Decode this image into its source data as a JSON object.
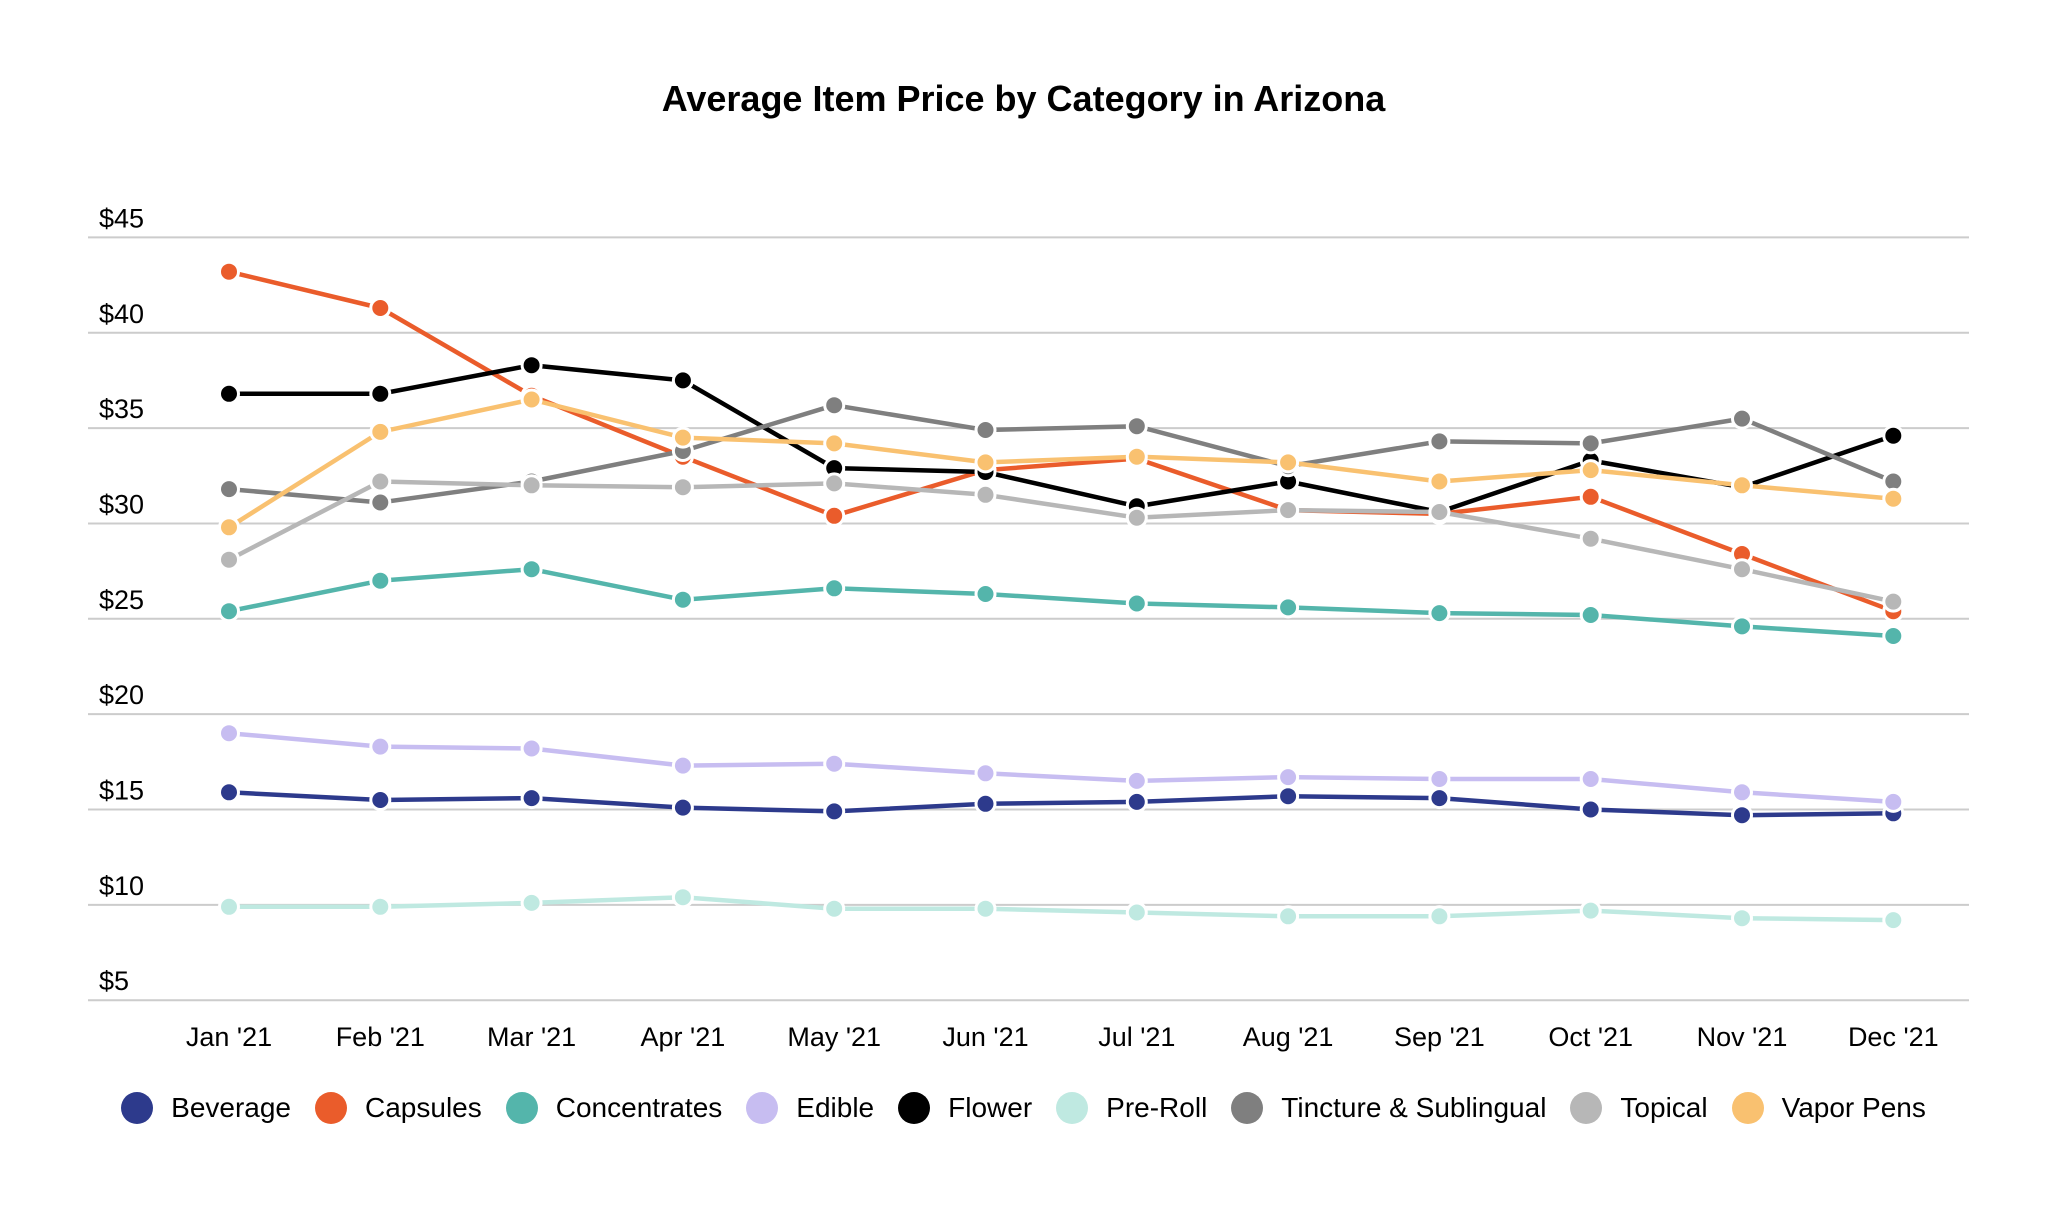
{
  "title": "Average Item Price by Category in Arizona",
  "chart_data": {
    "type": "line",
    "title": "Average Item Price by Category in Arizona",
    "x_categories": [
      "Jan '21",
      "Feb '21",
      "Mar '21",
      "Apr '21",
      "May '21",
      "Jun '21",
      "Jul '21",
      "Aug '21",
      "Sep '21",
      "Oct '21",
      "Nov '21",
      "Dec '21"
    ],
    "y_ticks": [
      45,
      40,
      35,
      30,
      25,
      20,
      15,
      10,
      5
    ],
    "y_tick_prefix": "$",
    "ylim": [
      5,
      45
    ],
    "grid": true,
    "gridline_color": "#cccccc",
    "legend_position": "bottom",
    "series": [
      {
        "name": "Beverage",
        "color": "#2d3a8c",
        "values": [
          15.9,
          15.5,
          15.6,
          15.1,
          14.9,
          15.3,
          15.4,
          15.7,
          15.6,
          15.0,
          14.7,
          14.8
        ]
      },
      {
        "name": "Capsules",
        "color": "#ea5c2b",
        "values": [
          43.2,
          41.3,
          36.7,
          33.5,
          30.4,
          32.8,
          33.4,
          30.7,
          30.5,
          31.4,
          28.4,
          25.4
        ]
      },
      {
        "name": "Concentrates",
        "color": "#54b5ab",
        "values": [
          25.4,
          27.0,
          27.6,
          26.0,
          26.6,
          26.3,
          25.8,
          25.6,
          25.3,
          25.2,
          24.6,
          24.1
        ]
      },
      {
        "name": "Edible",
        "color": "#c7bdf1",
        "values": [
          19.0,
          18.3,
          18.2,
          17.3,
          17.4,
          16.9,
          16.5,
          16.7,
          16.6,
          16.6,
          15.9,
          15.4
        ]
      },
      {
        "name": "Flower",
        "color": "#000000",
        "values": [
          36.8,
          36.8,
          38.3,
          37.5,
          32.9,
          32.7,
          30.9,
          32.2,
          30.6,
          33.3,
          31.9,
          34.6
        ]
      },
      {
        "name": "Pre-Roll",
        "color": "#bfe9e1",
        "values": [
          9.9,
          9.9,
          10.1,
          10.4,
          9.8,
          9.8,
          9.6,
          9.4,
          9.4,
          9.7,
          9.3,
          9.2
        ]
      },
      {
        "name": "Tincture & Sublingual",
        "color": "#7f7f7f",
        "values": [
          31.8,
          31.1,
          32.2,
          33.8,
          36.2,
          34.9,
          35.1,
          33.0,
          34.3,
          34.2,
          35.5,
          32.2
        ]
      },
      {
        "name": "Topical",
        "color": "#b7b7b7",
        "values": [
          28.1,
          32.2,
          32.0,
          31.9,
          32.1,
          31.5,
          30.3,
          30.7,
          30.6,
          29.2,
          27.6,
          25.9
        ]
      },
      {
        "name": "Vapor Pens",
        "color": "#f9c170",
        "values": [
          29.8,
          34.8,
          36.5,
          34.5,
          34.2,
          33.2,
          33.5,
          33.2,
          32.2,
          32.8,
          32.0,
          31.3
        ]
      }
    ]
  }
}
